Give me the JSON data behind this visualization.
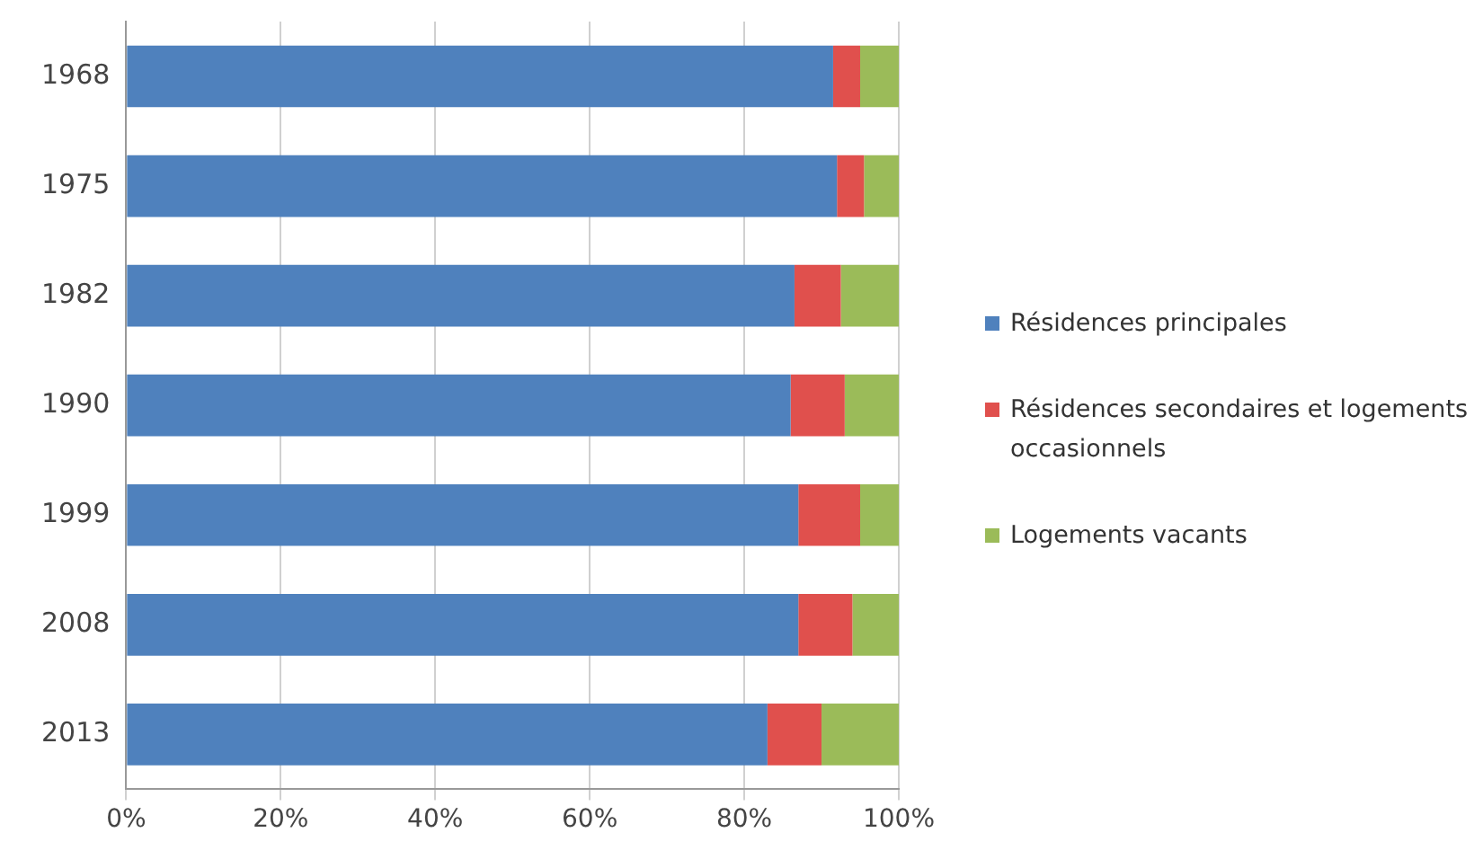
{
  "chart_data": {
    "type": "bar",
    "orientation": "horizontal",
    "stacked": true,
    "categories": [
      "1968",
      "1975",
      "1982",
      "1990",
      "1999",
      "2008",
      "2013"
    ],
    "series": [
      {
        "name": "Résidences principales",
        "color": "#4f81bd",
        "values": [
          91.5,
          92,
          86.5,
          86,
          87,
          87,
          83
        ]
      },
      {
        "name": "Résidences secondaires et logements occasionnels",
        "color": "#e0504d",
        "values": [
          3.5,
          3.5,
          6,
          7,
          8,
          7,
          7
        ]
      },
      {
        "name": "Logements vacants",
        "color": "#9bbb59",
        "values": [
          5,
          4.5,
          7.5,
          7,
          5,
          6,
          10
        ]
      }
    ],
    "xlim": [
      0,
      100
    ],
    "xticks": [
      {
        "value": 0,
        "label": "0%"
      },
      {
        "value": 20,
        "label": "20%"
      },
      {
        "value": 40,
        "label": "40%"
      },
      {
        "value": 60,
        "label": "60%"
      },
      {
        "value": 80,
        "label": "80%"
      },
      {
        "value": 100,
        "label": "100%"
      }
    ],
    "grid": "x",
    "legend": "right"
  }
}
